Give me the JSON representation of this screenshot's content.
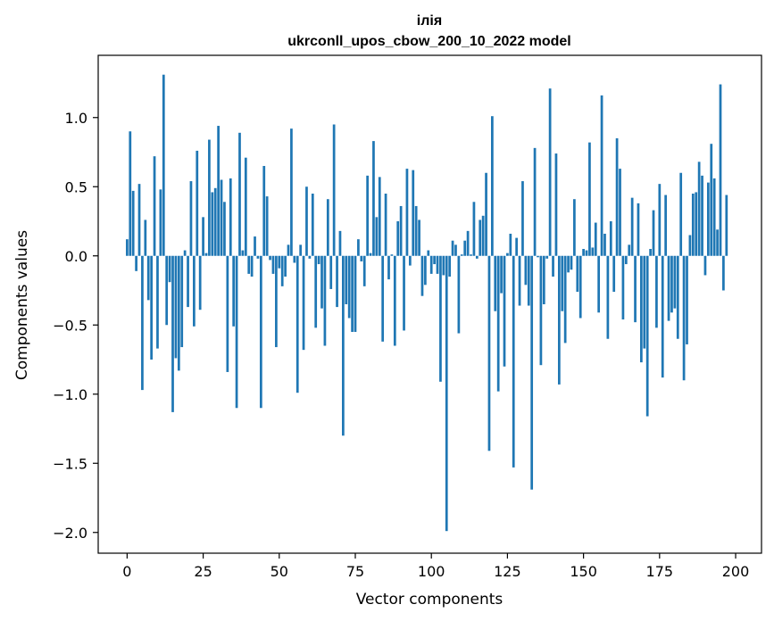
{
  "chart_data": {
    "type": "bar",
    "title": "ілія",
    "subtitle": "ukrconll_upos_cbow_200_10_2022 model",
    "xlabel": "Vector components",
    "ylabel": "Components values",
    "xlim": [
      -9.5,
      208.5
    ],
    "ylim": [
      -2.15,
      1.45
    ],
    "xticks": [
      0,
      25,
      50,
      75,
      100,
      125,
      150,
      175,
      200
    ],
    "yticks": [
      -2.0,
      -1.5,
      -1.0,
      -0.5,
      0.0,
      0.5,
      1.0
    ],
    "ytick_labels": [
      "−2.0",
      "−1.5",
      "−1.0",
      "−0.5",
      "0.0",
      "0.5",
      "1.0"
    ],
    "bar_color": "#1f77b4",
    "grid": false,
    "values": [
      0.12,
      0.9,
      0.47,
      -0.11,
      0.52,
      -0.97,
      0.26,
      -0.32,
      -0.75,
      0.72,
      -0.67,
      0.48,
      1.31,
      -0.5,
      -0.19,
      -1.13,
      -0.74,
      -0.83,
      -0.66,
      0.04,
      -0.37,
      0.54,
      -0.51,
      0.76,
      -0.39,
      0.28,
      0.02,
      0.84,
      0.46,
      0.49,
      0.94,
      0.55,
      0.39,
      -0.84,
      0.56,
      -0.51,
      -1.1,
      0.89,
      0.04,
      0.71,
      -0.13,
      -0.15,
      0.14,
      -0.02,
      -1.1,
      0.65,
      0.43,
      -0.03,
      -0.13,
      -0.66,
      -0.09,
      -0.22,
      -0.15,
      0.08,
      0.92,
      -0.05,
      -0.99,
      0.08,
      -0.68,
      0.5,
      -0.02,
      0.45,
      -0.52,
      -0.06,
      -0.38,
      -0.65,
      0.41,
      -0.24,
      0.95,
      -0.37,
      0.18,
      -1.3,
      -0.35,
      -0.45,
      -0.55,
      -0.55,
      0.12,
      -0.04,
      -0.22,
      0.58,
      0.02,
      0.83,
      0.28,
      0.57,
      -0.62,
      0.45,
      -0.17,
      0.01,
      -0.65,
      0.25,
      0.36,
      -0.54,
      0.63,
      -0.07,
      0.62,
      0.36,
      0.26,
      -0.29,
      -0.21,
      0.04,
      -0.13,
      -0.06,
      -0.13,
      -0.91,
      -0.14,
      -1.99,
      -0.15,
      0.11,
      0.08,
      -0.56,
      0.01,
      0.11,
      0.18,
      0.01,
      0.39,
      -0.02,
      0.26,
      0.29,
      0.6,
      -1.41,
      1.01,
      -0.4,
      -0.98,
      -0.27,
      -0.8,
      0.02,
      0.16,
      -1.53,
      0.13,
      -0.36,
      0.54,
      -0.21,
      -0.36,
      -1.69,
      0.78,
      -0.01,
      -0.79,
      -0.35,
      -0.02,
      1.21,
      -0.15,
      0.74,
      -0.93,
      -0.4,
      -0.63,
      -0.12,
      -0.1,
      0.41,
      -0.26,
      -0.45,
      0.05,
      0.04,
      0.82,
      0.06,
      0.24,
      -0.41,
      1.16,
      0.16,
      -0.6,
      0.25,
      -0.26,
      0.85,
      0.63,
      -0.46,
      -0.06,
      0.08,
      0.42,
      -0.48,
      0.38,
      -0.77,
      -0.67,
      -1.16,
      0.05,
      0.33,
      -0.52,
      0.52,
      -0.88,
      0.44,
      -0.47,
      -0.41,
      -0.38,
      -0.6,
      0.6,
      -0.9,
      -0.64,
      0.15,
      0.45,
      0.46,
      0.68,
      0.58,
      -0.14,
      0.53,
      0.81,
      0.56,
      0.19,
      1.24,
      -0.25,
      0.44
    ]
  }
}
